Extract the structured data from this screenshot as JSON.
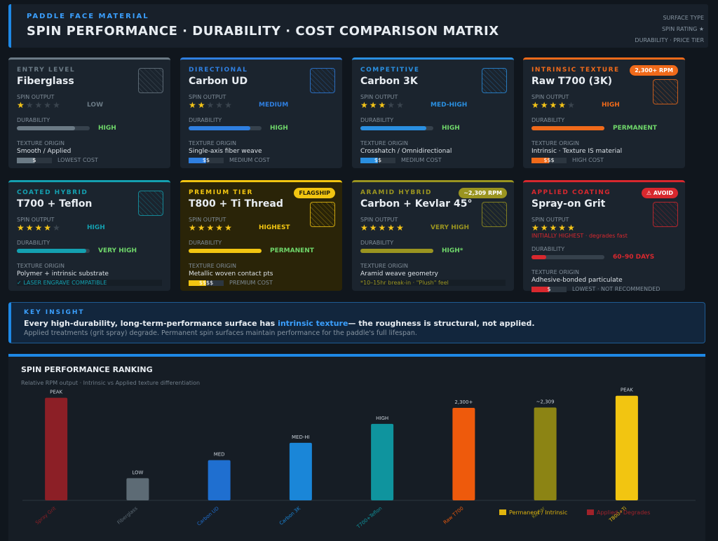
{
  "header": {
    "kicker": "PADDLE FACE MATERIAL",
    "title": "SPIN PERFORMANCE · DURABILITY · COST COMPARISON MATRIX",
    "key": [
      "SURFACE TYPE",
      "SPIN RATING ★",
      "DURABILITY · PRICE TIER"
    ]
  },
  "labels": {
    "spin": "SPIN OUTPUT",
    "durability": "DURABILITY",
    "origin": "TEXTURE ORIGIN"
  },
  "cards": [
    {
      "tier": "ENTRY LEVEL",
      "name": "Fiberglass",
      "stars": 1,
      "spin": "LOW",
      "durability": 80,
      "durability_label": "HIGH",
      "origin": "Smooth / Applied",
      "cost": "$",
      "cost_label": "LOWEST COST",
      "color": "#6b7a85"
    },
    {
      "tier": "DIRECTIONAL",
      "name": "Carbon UD",
      "stars": 2,
      "spin": "MEDIUM",
      "durability": 85,
      "durability_label": "HIGH",
      "origin": "Single-axis fiber weave",
      "cost": "$$",
      "cost_label": "MEDIUM COST",
      "color": "#2f7fe0"
    },
    {
      "tier": "COMPETITIVE",
      "name": "Carbon 3K",
      "stars": 3,
      "spin": "MED-HIGH",
      "durability": 90,
      "durability_label": "HIGH",
      "origin": "Crosshatch / Omnidirectional",
      "cost": "$$",
      "cost_label": "MEDIUM COST",
      "color": "#2a8fe0"
    },
    {
      "tier": "INTRINSIC TEXTURE",
      "name": "Raw T700 (3K)",
      "stars": 4,
      "spin": "HIGH",
      "durability": 100,
      "durability_label": "PERMANENT",
      "origin": "Intrinsic · Texture IS material",
      "cost": "$$$",
      "cost_label": "HIGH COST",
      "badge": "2,300+ RPM",
      "color": "#f06a1a"
    },
    {
      "tier": "COATED HYBRID",
      "name": "T700 + Teflon",
      "stars": 4,
      "spin": "HIGH",
      "durability": 95,
      "durability_label": "VERY HIGH",
      "origin": "Polymer + intrinsic substrate",
      "note": "✓ LASER ENGRAVE COMPATIBLE",
      "color": "#14a0b0"
    },
    {
      "tier": "PREMIUM TIER",
      "name": "T800 + Ti Thread",
      "stars": 5,
      "spin": "HIGHEST",
      "durability": 100,
      "durability_label": "PERMANENT",
      "origin": "Metallic woven contact pts",
      "cost": "$$$$",
      "cost_label": "PREMIUM COST",
      "badge": "FLAGSHIP",
      "color": "#f2c511"
    },
    {
      "tier": "ARAMID HYBRID",
      "name": "Carbon + Kevlar 45°",
      "stars": 5,
      "spin": "VERY HIGH",
      "durability": 100,
      "durability_label": "HIGH*",
      "origin": "Aramid weave geometry",
      "note": "*10–15hr break-in · \"Plush\" feel",
      "badge": "~2,309 RPM",
      "color": "#9a9420"
    },
    {
      "tier": "APPLIED COATING",
      "name": "Spray-on Grit",
      "stars": 5,
      "spin": "INITIALLY HIGHEST · degrades fast",
      "durability": 20,
      "durability_label": "60–90 DAYS",
      "origin": "Adhesive-bonded particulate",
      "cost": "$",
      "cost_label": "LOWEST · NOT RECOMMENDED",
      "badge": "⚠ AVOID",
      "color": "#d8282e"
    }
  ],
  "insight": {
    "label": "KEY INSIGHT",
    "lead": "Every high-durability, long-term-performance surface has",
    "highlight": "intrinsic texture",
    "tail": "— the roughness is structural, not applied.",
    "sub": "Applied treatments (grit spray) degrade. Permanent spin surfaces maintain performance for the paddle's full lifespan."
  },
  "chart_data": {
    "type": "bar",
    "title": "SPIN PERFORMANCE RANKING",
    "subtitle": "Relative RPM output · Intrinsic vs Applied texture differentiation",
    "categories": [
      "Spray Grit",
      "Fiberglass",
      "Carbon UD",
      "Carbon 3K",
      "T700+Teflon",
      "Raw T700",
      "Kevlar",
      "T800+Ti"
    ],
    "values": [
      2550,
      550,
      1000,
      1430,
      1900,
      2300,
      2309,
      2600
    ],
    "value_labels": [
      "PEAK",
      "LOW",
      "MED",
      "MED-HI",
      "HIGH",
      "2,300+",
      "~2,309",
      "PEAK"
    ],
    "colors": [
      "#8c1f26",
      "#5d6b75",
      "#1f6fd0",
      "#1a86d8",
      "#0f949e",
      "#ee5a0c",
      "#8c8414",
      "#f2c511"
    ],
    "ylim": [
      0,
      2700
    ],
    "legend": [
      {
        "name": "Permanent / Intrinsic",
        "color": "#e0b40e"
      },
      {
        "name": "Applied / Degrades",
        "color": "#a0222a"
      }
    ]
  }
}
